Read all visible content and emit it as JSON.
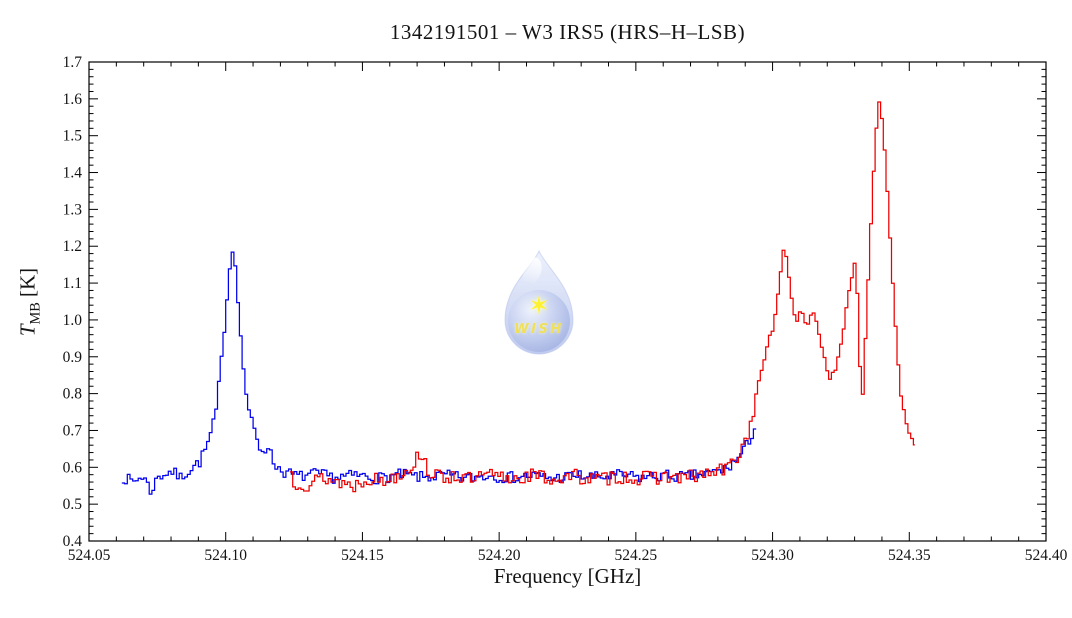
{
  "chart_data": {
    "type": "line",
    "title": "1342191501 – W3 IRS5 (HRS–H–LSB)",
    "xlabel": "Frequency [GHz]",
    "ylabel": {
      "symbol": "T",
      "sub": "MB",
      "unit": " [K]"
    },
    "xlim": [
      524.05,
      524.4
    ],
    "ylim": [
      0.4,
      1.7
    ],
    "xticks": [
      "524.05",
      "524.10",
      "524.15",
      "524.20",
      "524.25",
      "524.30",
      "524.35",
      "524.40"
    ],
    "yticks": [
      "0.4",
      "0.5",
      "0.6",
      "0.7",
      "0.8",
      "0.9",
      "1.0",
      "1.1",
      "1.2",
      "1.3",
      "1.4",
      "1.5",
      "1.6",
      "1.7"
    ],
    "x_minor_step": 0.01,
    "y_minor_step": 0.02,
    "grid": false,
    "frame_color": "#000000",
    "series": [
      {
        "name": "blue-spectrum",
        "color": "#0000ee",
        "channel_width": 0.001,
        "noise": 0.016,
        "seed": 7,
        "range": [
          524.062,
          524.294
        ],
        "anchors": [
          [
            524.062,
            0.575
          ],
          [
            524.066,
            0.56
          ],
          [
            524.07,
            0.578
          ],
          [
            524.0725,
            0.535
          ],
          [
            524.0755,
            0.575
          ],
          [
            524.08,
            0.59
          ],
          [
            524.0835,
            0.572
          ],
          [
            524.087,
            0.595
          ],
          [
            524.0905,
            0.615
          ],
          [
            524.093,
            0.655
          ],
          [
            524.095,
            0.7
          ],
          [
            524.0965,
            0.755
          ],
          [
            524.098,
            0.86
          ],
          [
            524.0995,
            0.97
          ],
          [
            524.101,
            1.1
          ],
          [
            524.1022,
            1.195
          ],
          [
            524.1035,
            1.15
          ],
          [
            524.105,
            1.0
          ],
          [
            524.1062,
            0.89
          ],
          [
            524.1075,
            0.8
          ],
          [
            524.109,
            0.735
          ],
          [
            524.1105,
            0.7
          ],
          [
            524.112,
            0.655
          ],
          [
            524.114,
            0.645
          ],
          [
            524.1155,
            0.662
          ],
          [
            524.117,
            0.62
          ],
          [
            524.119,
            0.6
          ],
          [
            524.122,
            0.585
          ],
          [
            524.127,
            0.575
          ],
          [
            524.133,
            0.582
          ],
          [
            524.14,
            0.572
          ],
          [
            524.148,
            0.578
          ],
          [
            524.156,
            0.57
          ],
          [
            524.164,
            0.58
          ],
          [
            524.172,
            0.572
          ],
          [
            524.18,
            0.578
          ],
          [
            524.188,
            0.57
          ],
          [
            524.196,
            0.578
          ],
          [
            524.204,
            0.572
          ],
          [
            524.212,
            0.578
          ],
          [
            524.22,
            0.57
          ],
          [
            524.228,
            0.578
          ],
          [
            524.236,
            0.572
          ],
          [
            524.244,
            0.578
          ],
          [
            524.252,
            0.572
          ],
          [
            524.26,
            0.578
          ],
          [
            524.268,
            0.574
          ],
          [
            524.276,
            0.582
          ],
          [
            524.283,
            0.595
          ],
          [
            524.287,
            0.62
          ],
          [
            524.29,
            0.65
          ],
          [
            524.2925,
            0.69
          ],
          [
            524.294,
            0.72
          ]
        ]
      },
      {
        "name": "red-spectrum",
        "color": "#ee0000",
        "channel_width": 0.001,
        "noise": 0.02,
        "seed": 13,
        "range": [
          524.1235,
          524.352
        ],
        "anchors": [
          [
            524.1235,
            0.62
          ],
          [
            524.1245,
            0.55
          ],
          [
            524.127,
            0.562
          ],
          [
            524.13,
            0.552
          ],
          [
            524.135,
            0.572
          ],
          [
            524.141,
            0.562
          ],
          [
            524.147,
            0.55
          ],
          [
            524.152,
            0.572
          ],
          [
            524.158,
            0.562
          ],
          [
            524.164,
            0.585
          ],
          [
            524.169,
            0.61
          ],
          [
            524.1715,
            0.645
          ],
          [
            524.174,
            0.592
          ],
          [
            524.178,
            0.572
          ],
          [
            524.184,
            0.578
          ],
          [
            524.19,
            0.565
          ],
          [
            524.196,
            0.578
          ],
          [
            524.204,
            0.57
          ],
          [
            524.212,
            0.578
          ],
          [
            524.22,
            0.568
          ],
          [
            524.228,
            0.576
          ],
          [
            524.236,
            0.566
          ],
          [
            524.244,
            0.576
          ],
          [
            524.252,
            0.568
          ],
          [
            524.26,
            0.576
          ],
          [
            524.268,
            0.57
          ],
          [
            524.276,
            0.582
          ],
          [
            524.282,
            0.592
          ],
          [
            524.286,
            0.615
          ],
          [
            524.289,
            0.655
          ],
          [
            524.2915,
            0.7
          ],
          [
            524.2935,
            0.77
          ],
          [
            524.2955,
            0.845
          ],
          [
            524.297,
            0.895
          ],
          [
            524.2985,
            0.95
          ],
          [
            524.3,
            0.965
          ],
          [
            524.3012,
            1.02
          ],
          [
            524.3025,
            1.1
          ],
          [
            524.3038,
            1.185
          ],
          [
            524.3045,
            1.2
          ],
          [
            524.3055,
            1.15
          ],
          [
            524.3065,
            1.08
          ],
          [
            524.3075,
            1.035
          ],
          [
            524.3085,
            1.0
          ],
          [
            524.3095,
            1.0
          ],
          [
            524.3105,
            1.035
          ],
          [
            524.3115,
            1.0
          ],
          [
            524.3125,
            0.978
          ],
          [
            524.3135,
            1.005
          ],
          [
            524.3145,
            1.022
          ],
          [
            524.3155,
            1.012
          ],
          [
            524.3165,
            0.982
          ],
          [
            524.3175,
            0.945
          ],
          [
            524.3185,
            0.915
          ],
          [
            524.3195,
            0.878
          ],
          [
            524.3205,
            0.852
          ],
          [
            524.3215,
            0.84
          ],
          [
            524.3228,
            0.858
          ],
          [
            524.324,
            0.892
          ],
          [
            524.3255,
            0.95
          ],
          [
            524.327,
            1.03
          ],
          [
            524.3285,
            1.1
          ],
          [
            524.33,
            1.155
          ],
          [
            524.3309,
            1.09
          ],
          [
            524.3317,
            0.94
          ],
          [
            524.3324,
            0.795
          ],
          [
            524.3329,
            0.775
          ],
          [
            524.3337,
            0.91
          ],
          [
            524.3347,
            1.06
          ],
          [
            524.3357,
            1.22
          ],
          [
            524.3367,
            1.37
          ],
          [
            524.3377,
            1.49
          ],
          [
            524.3386,
            1.58
          ],
          [
            524.3392,
            1.6
          ],
          [
            524.34,
            1.55
          ],
          [
            524.341,
            1.46
          ],
          [
            524.342,
            1.35
          ],
          [
            524.3432,
            1.2
          ],
          [
            524.3444,
            1.05
          ],
          [
            524.3456,
            0.92
          ],
          [
            524.347,
            0.8
          ],
          [
            524.3485,
            0.72
          ],
          [
            524.35,
            0.675
          ],
          [
            524.3515,
            0.652
          ],
          [
            524.352,
            0.645
          ]
        ]
      }
    ]
  },
  "watermark": {
    "star": "✶",
    "text": "WISH",
    "star_color": "#ffee00",
    "text_color": "#ecd838",
    "drop_color_light": "#dce5f8",
    "drop_color_dark": "#aebded",
    "sphere_color_light": "#e9effc",
    "sphere_color_dark": "#93a6de"
  }
}
